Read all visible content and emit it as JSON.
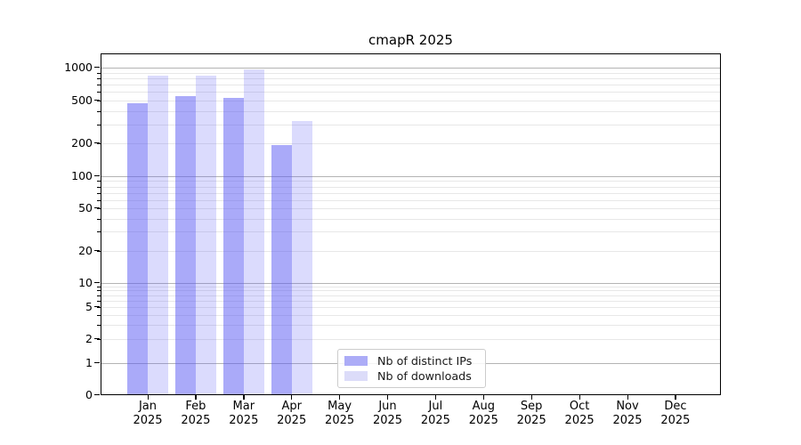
{
  "chart_data": {
    "type": "bar",
    "title": "cmapR 2025",
    "categories": [
      "Jan",
      "Feb",
      "Mar",
      "Apr",
      "May",
      "Jun",
      "Jul",
      "Aug",
      "Sep",
      "Oct",
      "Nov",
      "Dec"
    ],
    "category_year": "2025",
    "series": [
      {
        "name": "Nb of distinct IPs",
        "color": "#acacf7",
        "values": [
          470,
          550,
          530,
          195,
          null,
          null,
          null,
          null,
          null,
          null,
          null,
          null
        ]
      },
      {
        "name": "Nb of downloads",
        "color": "#dcdcf9",
        "values": [
          840,
          850,
          960,
          320,
          null,
          null,
          null,
          null,
          null,
          null,
          null,
          null
        ]
      }
    ],
    "y_ticks": [
      0,
      1,
      2,
      5,
      10,
      20,
      50,
      100,
      200,
      500,
      1000
    ],
    "ylim": [
      0,
      1000
    ],
    "y_scale": "log above 1, linear 0-1",
    "grid": "horizontal major and log-minor gridlines",
    "legend_position": "lower center",
    "colors": {
      "bar_distinct_ips": "#acacf7",
      "bar_downloads": "#dcdcf9",
      "grid_major": "#b4b4b4",
      "grid_minor": "#e7e7e7",
      "axis": "#000000",
      "background": "#ffffff"
    }
  }
}
